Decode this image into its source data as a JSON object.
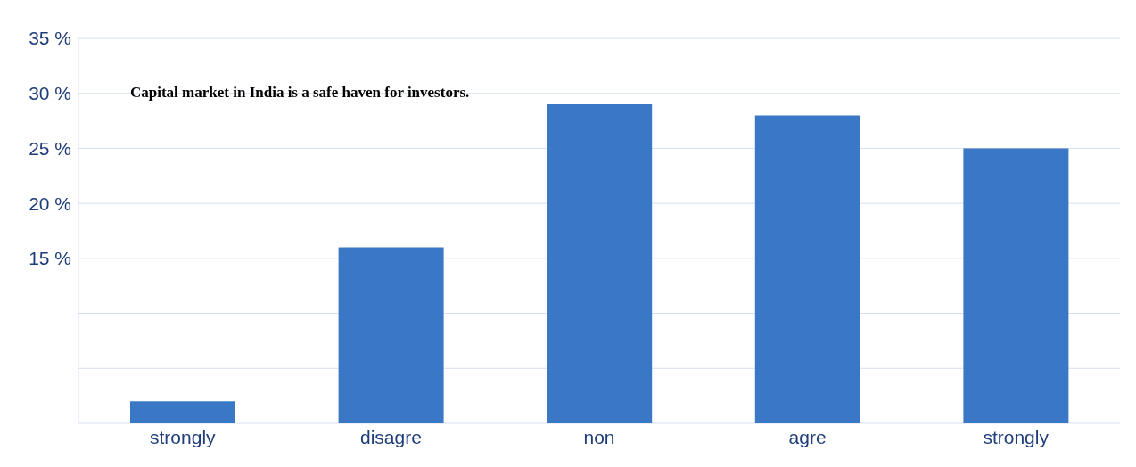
{
  "chart_data": {
    "type": "bar",
    "title": "Capital market in India is a safe haven for investors.",
    "categories": [
      "strongly",
      "disagre",
      "non",
      "agre",
      "strongly"
    ],
    "values": [
      2,
      16,
      29,
      28,
      25
    ],
    "color": "#3a78c6",
    "ylim": [
      0,
      35
    ],
    "yticks": [
      {
        "value": 0,
        "label": null
      },
      {
        "value": 5,
        "label": null
      },
      {
        "value": 10,
        "label": null
      },
      {
        "value": 15,
        "label": "15 %"
      },
      {
        "value": 20,
        "label": "20 %"
      },
      {
        "value": 25,
        "label": "25 %"
      },
      {
        "value": 30,
        "label": "30 %"
      },
      {
        "value": 35,
        "label": "35 %"
      }
    ],
    "grid": "y"
  }
}
